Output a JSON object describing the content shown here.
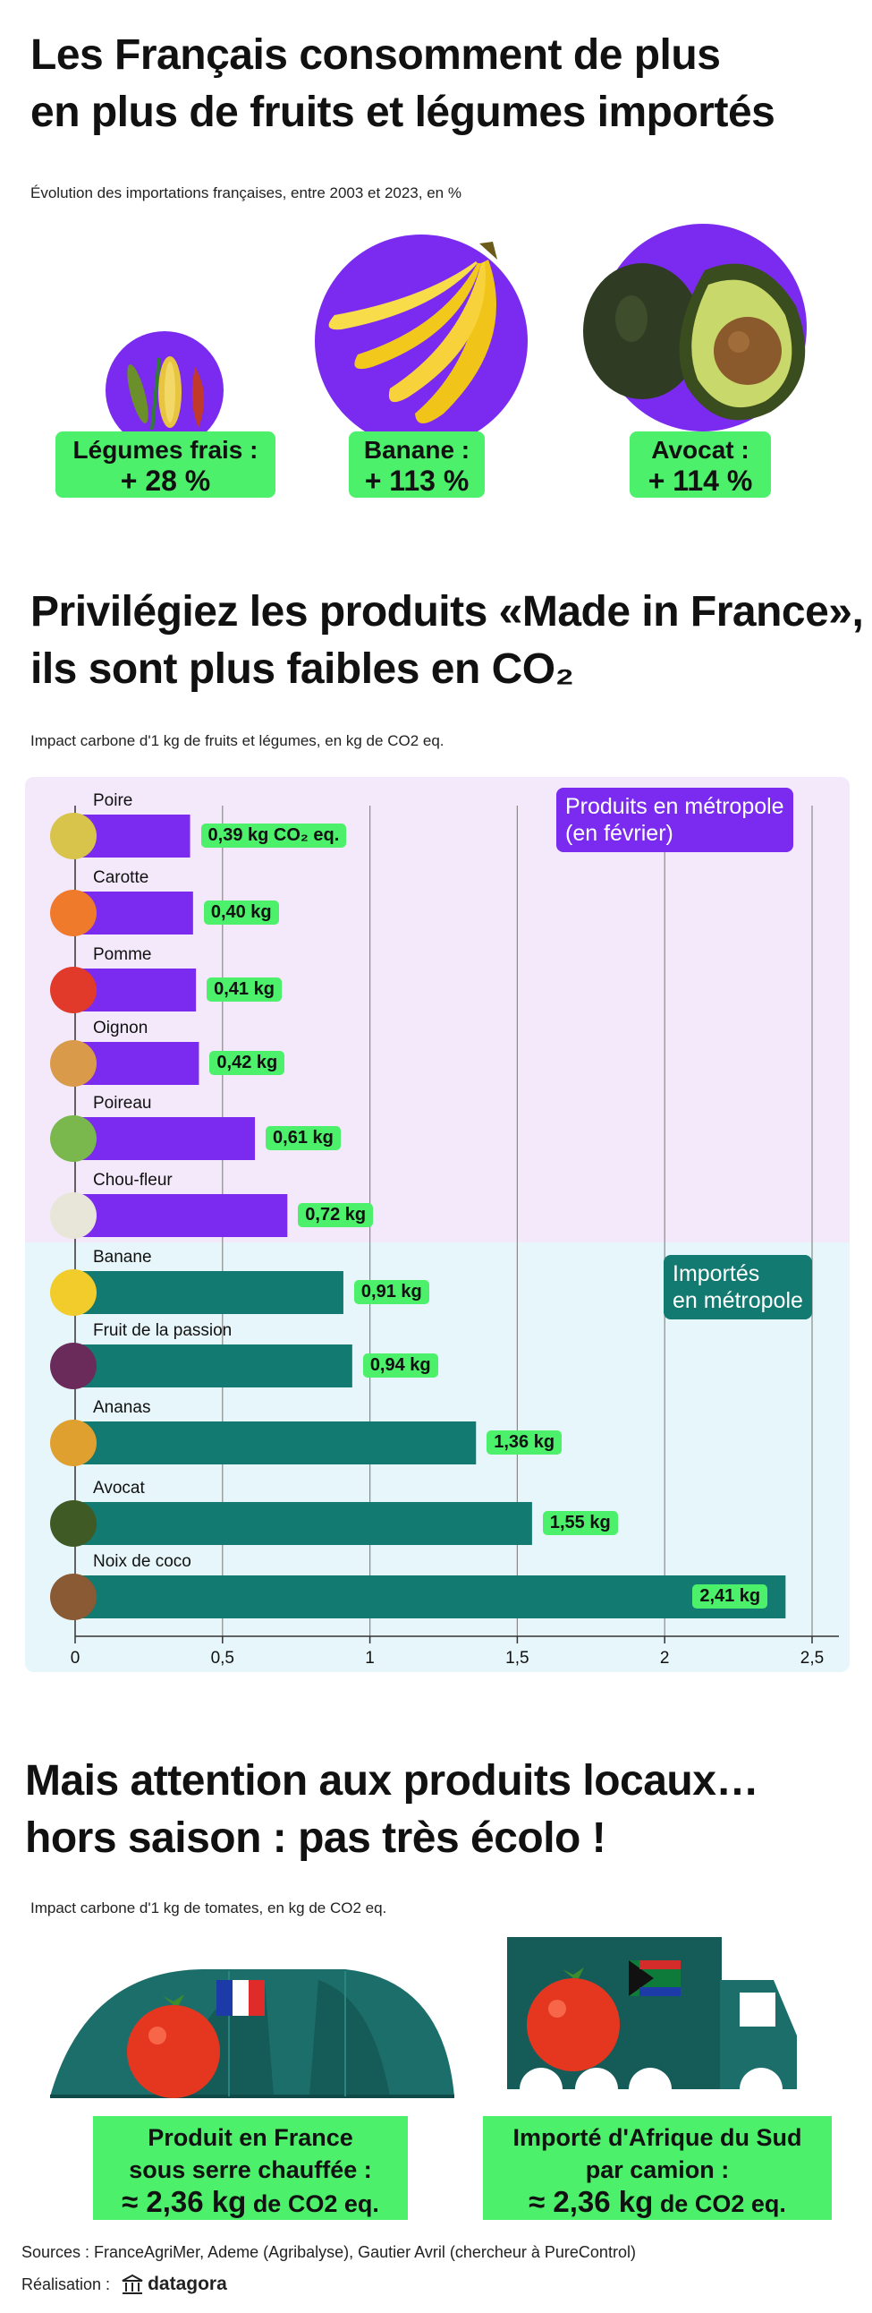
{
  "section1": {
    "title_line1": "Les Français consomment de plus",
    "title_line2": "en plus de fruits et légumes importés",
    "subtitle": "Évolution des importations françaises, entre 2003 et 2023, en %",
    "items": [
      {
        "name": "Légumes frais :",
        "value": "+ 28 %"
      },
      {
        "name": "Banane :",
        "value": "+ 113 %"
      },
      {
        "name": "Avocat :",
        "value": "+ 114 %"
      }
    ]
  },
  "section2": {
    "title_line1": "Privilégiez les produits «Made in France»,",
    "title_line2": "ils sont plus faibles en CO₂",
    "subtitle": "Impact carbone d'1 kg de fruits et légumes, en kg de CO2 eq.",
    "legend_local_line1": "Produits en métropole",
    "legend_local_line2": "(en février)",
    "legend_import_line1": "Importés",
    "legend_import_line2": "en métropole"
  },
  "chart_data": {
    "type": "bar",
    "orientation": "horizontal",
    "title": "Impact carbone d'1 kg de fruits et légumes, en kg de CO2 eq.",
    "categories": [
      "Poire",
      "Carotte",
      "Pomme",
      "Oignon",
      "Poireau",
      "Chou-fleur",
      "Banane",
      "Fruit de la passion",
      "Ananas",
      "Avocat",
      "Noix de coco"
    ],
    "values": [
      0.39,
      0.4,
      0.41,
      0.42,
      0.61,
      0.72,
      0.91,
      0.94,
      1.36,
      1.55,
      2.41
    ],
    "value_labels": [
      "0,39 kg CO₂ eq.",
      "0,40 kg",
      "0,41 kg",
      "0,42 kg",
      "0,61 kg",
      "0,72 kg",
      "0,91 kg",
      "0,94 kg",
      "1,36 kg",
      "1,55 kg",
      "2,41 kg"
    ],
    "groups": [
      "local",
      "local",
      "local",
      "local",
      "local",
      "local",
      "import",
      "import",
      "import",
      "import",
      "import"
    ],
    "xlim": [
      0,
      2.5
    ],
    "ticks": [
      "0",
      "0,5",
      "1",
      "1,5",
      "2",
      "2,5"
    ],
    "tick_values": [
      0,
      0.5,
      1,
      1.5,
      2,
      2.5
    ],
    "colors": {
      "local": "#7b2bf0",
      "import": "#127a70",
      "local_bg": "#f4e9fb",
      "import_bg": "#e6f6fa"
    }
  },
  "section3": {
    "title_line1": "Mais attention aux produits locaux…",
    "title_line2": "hors saison : pas très écolo !",
    "subtitle": "Impact carbone d'1 kg de tomates, en kg de CO2 eq.",
    "france_line1": "Produit en France",
    "france_line2": "sous serre chauffée :",
    "france_value": "≈ 2,36 kg",
    "france_unit": " de CO2 eq.",
    "import_line1": "Importé d'Afrique du Sud",
    "import_line2": "par camion :",
    "import_value": "≈ 2,36 kg",
    "import_unit": " de CO2 eq."
  },
  "footer": {
    "sources": "Sources :  FranceAgriMer, Ademe (Agribalyse), Gautier Avril (chercheur à PureControl)",
    "realisation": "Réalisation :",
    "brand": "datagora"
  },
  "colors": {
    "green": "#4cf06a",
    "purple": "#7b2bf0",
    "teal": "#127a70"
  }
}
